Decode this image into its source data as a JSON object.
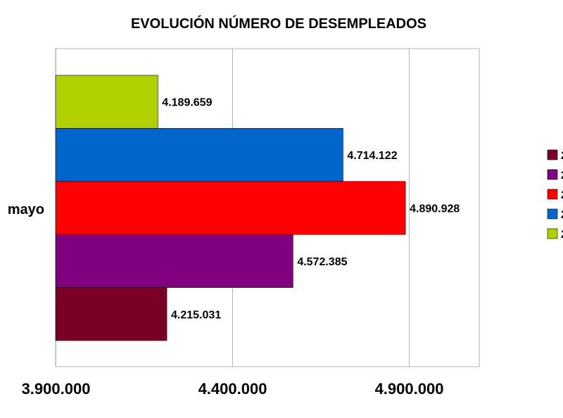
{
  "chart_data": {
    "type": "bar",
    "orientation": "horizontal",
    "title": "EVOLUCIÓN NÚMERO DE DESEMPLEADOS",
    "categories": [
      "mayo"
    ],
    "series": [
      {
        "name": "2",
        "values": [
          4215031
        ],
        "label": "4.215.031",
        "color": "#7b0025"
      },
      {
        "name": "2",
        "values": [
          4572385
        ],
        "label": "4.572.385",
        "color": "#800080"
      },
      {
        "name": "2",
        "values": [
          4890928
        ],
        "label": "4.890.928",
        "color": "#ff0000"
      },
      {
        "name": "2",
        "values": [
          4714122
        ],
        "label": "4.714.122",
        "color": "#0066cc"
      },
      {
        "name": "2",
        "values": [
          4189659
        ],
        "label": "4.189.659",
        "color": "#b0d000"
      }
    ],
    "xlim": [
      3900000,
      5100000
    ],
    "ticks": [
      {
        "value": 3900000,
        "label": "3.900.000"
      },
      {
        "value": 4400000,
        "label": "4.400.000"
      },
      {
        "value": 4900000,
        "label": "4.900.000"
      }
    ],
    "grid": true,
    "legend_position": "right"
  }
}
